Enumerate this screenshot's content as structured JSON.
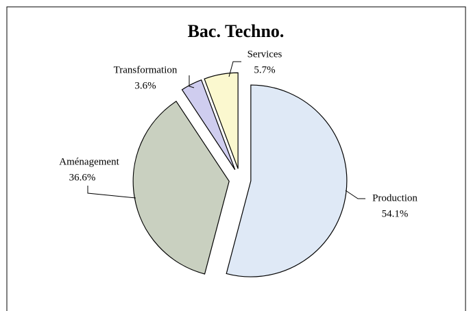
{
  "chart_data": {
    "type": "pie",
    "title": "Bac. Techno.",
    "categories": [
      "Production",
      "Aménagement",
      "Transformation",
      "Services"
    ],
    "values": [
      54.1,
      36.6,
      3.6,
      5.7
    ],
    "value_labels": [
      "54.1%",
      "36.6%",
      "3.6%",
      "5.7%"
    ],
    "colors": [
      "#dfe9f6",
      "#c9d0c0",
      "#cfcdef",
      "#fbf8cf"
    ]
  }
}
